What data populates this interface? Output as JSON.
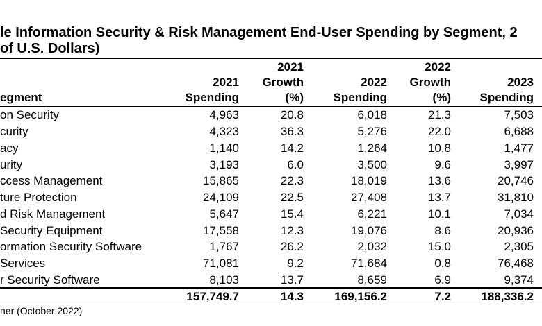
{
  "title": {
    "line1": "le Information Security & Risk Management End-User Spending by Segment, 2",
    "line2": "of U.S. Dollars)"
  },
  "columns": {
    "segment": "egment",
    "c2021_spending": [
      "2021",
      "Spending"
    ],
    "c2021_growth": [
      "2021",
      "Growth",
      "(%)"
    ],
    "c2022_spending": [
      "2022",
      "Spending"
    ],
    "c2022_growth": [
      "2022",
      "Growth",
      "(%)"
    ],
    "c2023_spending": [
      "2023",
      "Spending"
    ]
  },
  "rows": [
    {
      "segment": "on Security",
      "s2021": "4,963",
      "g2021": "20.8",
      "s2022": "6,018",
      "g2022": "21.3",
      "s2023": "7,503"
    },
    {
      "segment": "curity",
      "s2021": "4,323",
      "g2021": "36.3",
      "s2022": "5,276",
      "g2022": "22.0",
      "s2023": "6,688"
    },
    {
      "segment": "acy",
      "s2021": "1,140",
      "g2021": "14.2",
      "s2022": "1,264",
      "g2022": "10.8",
      "s2023": "1,477"
    },
    {
      "segment": "urity",
      "s2021": "3,193",
      "g2021": "6.0",
      "s2022": "3,500",
      "g2022": "9.6",
      "s2023": "3,997"
    },
    {
      "segment": "ccess Management",
      "s2021": "15,865",
      "g2021": "22.3",
      "s2022": "18,019",
      "g2022": "13.6",
      "s2023": "20,746"
    },
    {
      "segment": "ture Protection",
      "s2021": "24,109",
      "g2021": "22.5",
      "s2022": "27,408",
      "g2022": "13.7",
      "s2023": "31,810"
    },
    {
      "segment": "d Risk Management",
      "s2021": "5,647",
      "g2021": "15.4",
      "s2022": "6,221",
      "g2022": "10.1",
      "s2023": "7,034"
    },
    {
      "segment": "Security Equipment",
      "s2021": "17,558",
      "g2021": "12.3",
      "s2022": "19,076",
      "g2022": "8.6",
      "s2023": "20,936"
    },
    {
      "segment": "ormation Security Software",
      "s2021": "1,767",
      "g2021": "26.2",
      "s2022": "2,032",
      "g2022": "15.0",
      "s2023": "2,305"
    },
    {
      "segment": "Services",
      "s2021": "71,081",
      "g2021": "9.2",
      "s2022": "71,684",
      "g2022": "0.8",
      "s2023": "76,468"
    },
    {
      "segment": "r Security Software",
      "s2021": "8,103",
      "g2021": "13.7",
      "s2022": "8,659",
      "g2022": "6.9",
      "s2023": "9,374"
    }
  ],
  "total": {
    "s2021": "157,749.7",
    "g2021": "14.3",
    "s2022": "169,156.2",
    "g2022": "7.2",
    "s2023": "188,336.2"
  },
  "source": "ner (October 2022)"
}
